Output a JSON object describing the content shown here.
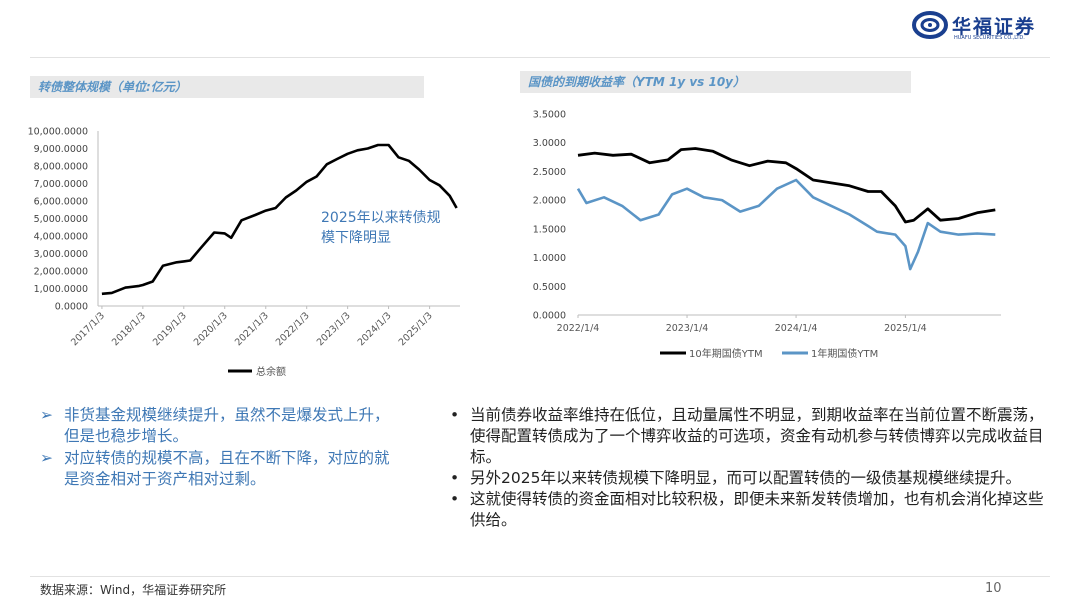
{
  "header": {
    "logo_cn": "华福证券",
    "logo_en": "HUAFU SECURITIES CO.,LTD."
  },
  "left_panel": {
    "title": "转债整体规模（单位:亿元）",
    "annotation_line1": "2025年以来转债规",
    "annotation_line2": "模下降明显"
  },
  "right_panel": {
    "title": "国债的到期收益率（YTM 1y vs 10y）"
  },
  "chart_data": [
    {
      "type": "line",
      "title": "转债整体规模（单位:亿元）",
      "y_ticks": [
        "10,000.0000",
        "9,000.0000",
        "8,000.0000",
        "7,000.0000",
        "6,000.0000",
        "5,000.0000",
        "4,000.0000",
        "3,000.0000",
        "2,000.0000",
        "1,000.0000",
        "0.0000"
      ],
      "ylim": [
        0,
        10000
      ],
      "x_ticks": [
        "2017/1/3",
        "2018/1/3",
        "2019/1/3",
        "2020/1/3",
        "2021/1/3",
        "2022/1/3",
        "2023/1/3",
        "2024/1/3",
        "2025/1/3"
      ],
      "series": [
        {
          "name": "总余额",
          "color": "#000000",
          "x": [
            "2017/1/3",
            "2017/4/1",
            "2017/8/1",
            "2017/12/1",
            "2018/1/3",
            "2018/4/1",
            "2018/7/1",
            "2018/11/1",
            "2019/1/3",
            "2019/3/1",
            "2019/6/1",
            "2019/10/1",
            "2020/1/3",
            "2020/3/1",
            "2020/6/1",
            "2020/10/1",
            "2021/1/3",
            "2021/4/1",
            "2021/7/1",
            "2021/10/1",
            "2022/1/3",
            "2022/4/1",
            "2022/7/1",
            "2022/10/1",
            "2023/1/3",
            "2023/4/1",
            "2023/7/1",
            "2023/10/1",
            "2024/1/3",
            "2024/4/1",
            "2024/7/1",
            "2024/10/1",
            "2025/1/3",
            "2025/4/1",
            "2025/7/1",
            "2025/9/1"
          ],
          "values": [
            700,
            750,
            1050,
            1150,
            1200,
            1400,
            2300,
            2500,
            2550,
            2600,
            3300,
            4200,
            4150,
            3900,
            4900,
            5200,
            5450,
            5600,
            6200,
            6600,
            7100,
            7400,
            8100,
            8400,
            8700,
            8900,
            9000,
            9200,
            9200,
            8500,
            8300,
            7800,
            7200,
            6900,
            6300,
            5600
          ]
        }
      ]
    },
    {
      "type": "line",
      "title": "国债的到期收益率（YTM 1y vs 10y）",
      "y_ticks": [
        "3.5000",
        "3.0000",
        "2.5000",
        "2.0000",
        "1.5000",
        "1.0000",
        "0.5000",
        "0.0000"
      ],
      "ylim": [
        0,
        3.5
      ],
      "x_ticks": [
        "2022/1/4",
        "2023/1/4",
        "2024/1/4",
        "2025/1/4"
      ],
      "legend_position": "bottom",
      "series": [
        {
          "name": "10年期国债YTM",
          "color": "#000000",
          "x": [
            "2022/1/4",
            "2022/3/1",
            "2022/5/1",
            "2022/7/1",
            "2022/9/1",
            "2022/11/1",
            "2022/12/15",
            "2023/2/1",
            "2023/4/1",
            "2023/6/1",
            "2023/8/1",
            "2023/10/1",
            "2023/12/1",
            "2024/1/4",
            "2024/3/1",
            "2024/5/1",
            "2024/7/1",
            "2024/9/1",
            "2024/10/15",
            "2024/12/1",
            "2025/1/4",
            "2025/2/1",
            "2025/3/20",
            "2025/5/1",
            "2025/7/1",
            "2025/9/1",
            "2025/11/1"
          ],
          "values": [
            2.78,
            2.82,
            2.78,
            2.8,
            2.65,
            2.7,
            2.88,
            2.9,
            2.85,
            2.7,
            2.6,
            2.68,
            2.65,
            2.55,
            2.35,
            2.3,
            2.25,
            2.15,
            2.15,
            1.9,
            1.62,
            1.65,
            1.85,
            1.65,
            1.68,
            1.78,
            1.83
          ]
        },
        {
          "name": "1年期国债YTM",
          "color": "#5b95c6",
          "x": [
            "2022/1/4",
            "2022/2/1",
            "2022/4/1",
            "2022/6/1",
            "2022/8/1",
            "2022/10/1",
            "2022/11/15",
            "2023/1/4",
            "2023/3/1",
            "2023/5/1",
            "2023/7/1",
            "2023/9/1",
            "2023/11/1",
            "2024/1/4",
            "2024/3/1",
            "2024/5/1",
            "2024/7/1",
            "2024/9/1",
            "2024/10/1",
            "2024/12/1",
            "2025/1/4",
            "2025/1/20",
            "2025/2/15",
            "2025/3/20",
            "2025/5/1",
            "2025/7/1",
            "2025/9/1",
            "2025/11/1"
          ],
          "values": [
            2.2,
            1.95,
            2.05,
            1.9,
            1.65,
            1.75,
            2.1,
            2.2,
            2.05,
            2.0,
            1.8,
            1.9,
            2.2,
            2.35,
            2.05,
            1.9,
            1.75,
            1.55,
            1.45,
            1.4,
            1.2,
            0.8,
            1.1,
            1.6,
            1.45,
            1.4,
            1.42,
            1.4
          ]
        }
      ]
    }
  ],
  "bullets_left": [
    "非货基金规模继续提升，虽然不是爆发式上升，但是也稳步增长。",
    "对应转债的规模不高，且在不断下降，对应的就是资金相对于资产相对过剩。"
  ],
  "bullets_left_marker": "➢",
  "bullets_right": [
    "当前债券收益率维持在低位，且动量属性不明显，到期收益率在当前位置不断震荡，使得配置转债成为了一个博弈收益的可选项，资金有动机参与转债博弈以完成收益目标。",
    "另外2025年以来转债规模下降明显，而可以配置转债的一级债基规模继续提升。",
    "这就使得转债的资金面相对比较积极，即便未来新发转债增加，也有机会消化掉这些供给。"
  ],
  "bullets_right_marker": "•",
  "footer": {
    "source": "数据来源：Wind，华福证券研究所",
    "page": "10"
  }
}
